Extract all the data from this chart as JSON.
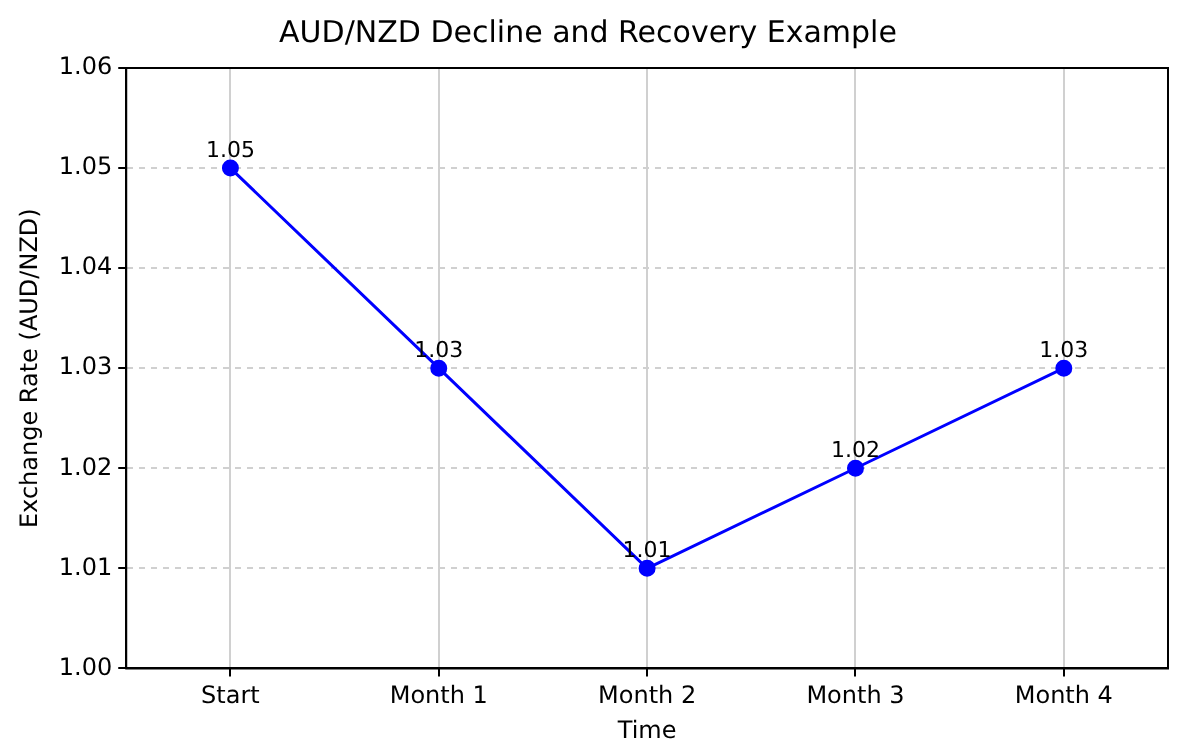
{
  "chart_data": {
    "type": "line",
    "title": "AUD/NZD Decline and Recovery Example",
    "xlabel": "Time",
    "ylabel": "Exchange Rate (AUD/NZD)",
    "categories": [
      "Start",
      "Month 1",
      "Month 2",
      "Month 3",
      "Month 4"
    ],
    "series": [
      {
        "color": "#0000ff",
        "values": [
          1.05,
          1.03,
          1.01,
          1.02,
          1.03
        ]
      }
    ],
    "ylim": [
      1.0,
      1.06
    ],
    "yticks": [
      {
        "value": 1.0,
        "label": "1.00"
      },
      1.01,
      1.02,
      1.03,
      1.04,
      1.05,
      1.06
    ],
    "grid": true,
    "marker": "circle",
    "line_style": "solid",
    "data_labels": true
  }
}
